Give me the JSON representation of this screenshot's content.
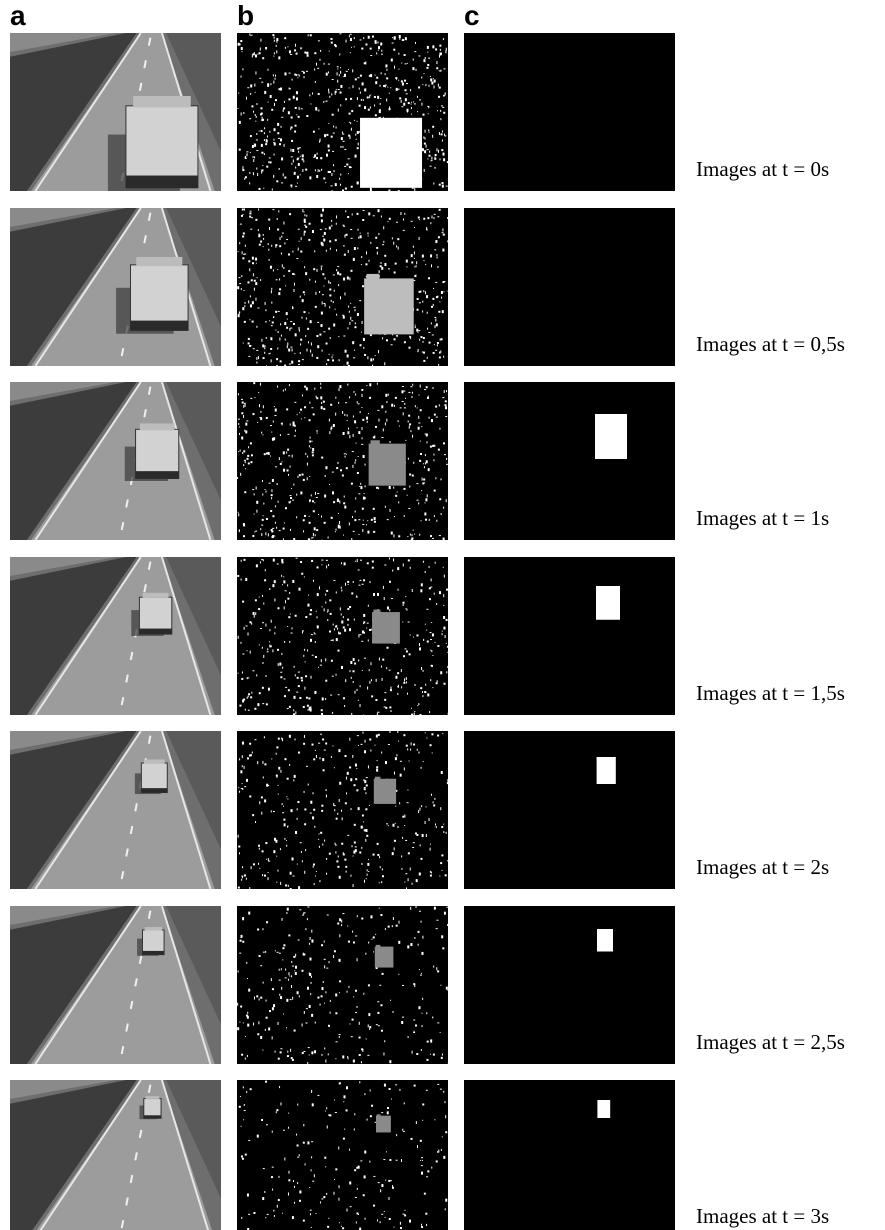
{
  "figure": {
    "columns": [
      {
        "label": "a",
        "content": "camera frame"
      },
      {
        "label": "b",
        "content": "motion segmentation"
      },
      {
        "label": "c",
        "content": "detected object mask"
      }
    ],
    "rows": [
      {
        "caption": "Images at t = 0s",
        "t_seconds": 0,
        "vehicle_scale": 1.0,
        "vehicle_depth": 0.0
      },
      {
        "caption": "Images at t = 0,5s",
        "t_seconds": 0.5,
        "vehicle_scale": 0.8,
        "vehicle_depth": 0.25
      },
      {
        "caption": "Images at t = 1s",
        "t_seconds": 1,
        "vehicle_scale": 0.6,
        "vehicle_depth": 0.45
      },
      {
        "caption": "Images at t = 1,5s",
        "t_seconds": 1.5,
        "vehicle_scale": 0.45,
        "vehicle_depth": 0.6
      },
      {
        "caption": "Images at t = 2s",
        "t_seconds": 2,
        "vehicle_scale": 0.36,
        "vehicle_depth": 0.72
      },
      {
        "caption": "Images at t = 2,5s",
        "t_seconds": 2.5,
        "vehicle_scale": 0.3,
        "vehicle_depth": 0.82
      },
      {
        "caption": "Images at t = 3s",
        "t_seconds": 3,
        "vehicle_scale": 0.24,
        "vehicle_depth": 0.9
      }
    ],
    "colors": {
      "background": "#ffffff",
      "panel_black": "#000000",
      "mask_white": "#ffffff",
      "blob_gray_light": "#bdbdbd",
      "blob_gray_mid": "#8a8a8a",
      "road_gray": "#9c9c9c",
      "vegetation_dark": "#3c3c3c"
    }
  }
}
